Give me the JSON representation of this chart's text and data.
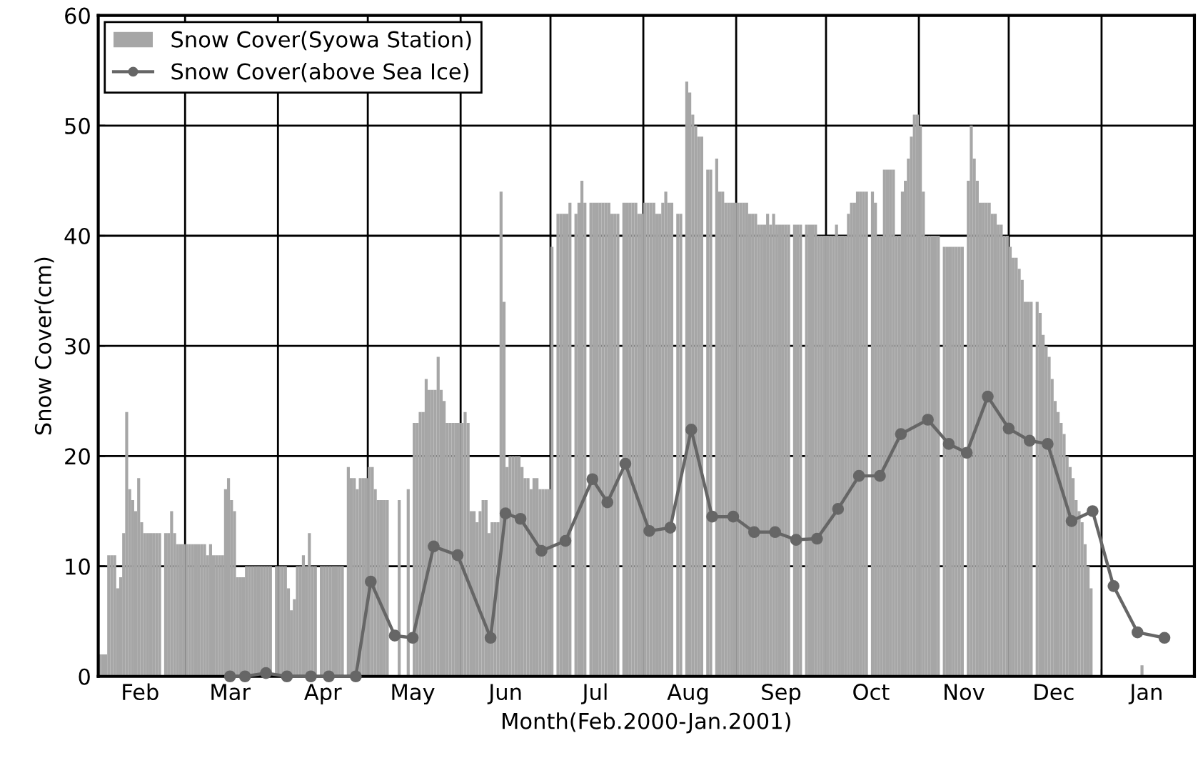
{
  "chart_data": {
    "type": "bar",
    "xlabel": "Month(Feb.2000-Jan.2001)",
    "ylabel": "Snow Cover(cm)",
    "xlim": [
      "2000-02-01",
      "2001-02-01"
    ],
    "xticks": [
      {
        "value": "2000-02-01",
        "label": null
      },
      {
        "value": "2000-02-15",
        "label": "Feb"
      },
      {
        "value": "2000-03-01",
        "label": null
      },
      {
        "value": "2000-03-16",
        "label": "Mar"
      },
      {
        "value": "2000-04-01",
        "label": null
      },
      {
        "value": "2000-04-16",
        "label": "Apr"
      },
      {
        "value": "2000-05-01",
        "label": null
      },
      {
        "value": "2000-05-16",
        "label": "May"
      },
      {
        "value": "2000-06-01",
        "label": null
      },
      {
        "value": "2000-06-16",
        "label": "Jun"
      },
      {
        "value": "2000-07-01",
        "label": null
      },
      {
        "value": "2000-07-16",
        "label": "Jul"
      },
      {
        "value": "2000-08-01",
        "label": null
      },
      {
        "value": "2000-08-16",
        "label": "Aug"
      },
      {
        "value": "2000-09-01",
        "label": null
      },
      {
        "value": "2000-09-16",
        "label": "Sep"
      },
      {
        "value": "2000-10-01",
        "label": null
      },
      {
        "value": "2000-10-16",
        "label": "Oct"
      },
      {
        "value": "2000-11-01",
        "label": null
      },
      {
        "value": "2000-11-16",
        "label": "Nov"
      },
      {
        "value": "2000-12-01",
        "label": null
      },
      {
        "value": "2000-12-16",
        "label": "Dec"
      },
      {
        "value": "2001-01-01",
        "label": null
      },
      {
        "value": "2001-01-16",
        "label": "Jan"
      },
      {
        "value": "2001-02-01",
        "label": null
      }
    ],
    "ylim": [
      0,
      60
    ],
    "yticks": [
      0,
      10,
      20,
      30,
      40,
      50,
      60
    ],
    "grid": true,
    "legend": "top left",
    "series": [
      {
        "name": "Snow Cover(Syowa Station)",
        "color": "#a6a6a6",
        "x": [
          "2000-02-01",
          "2000-02-02",
          "2000-02-03",
          "2000-02-04",
          "2000-02-05",
          "2000-02-06",
          "2000-02-07",
          "2000-02-08",
          "2000-02-09",
          "2000-02-10",
          "2000-02-11",
          "2000-02-12",
          "2000-02-13",
          "2000-02-14",
          "2000-02-15",
          "2000-02-16",
          "2000-02-17",
          "2000-02-18",
          "2000-02-19",
          "2000-02-20",
          "2000-02-21",
          "2000-02-23",
          "2000-02-24",
          "2000-02-25",
          "2000-02-26",
          "2000-02-27",
          "2000-02-28",
          "2000-02-29",
          "2000-03-01",
          "2000-03-02",
          "2000-03-03",
          "2000-03-04",
          "2000-03-05",
          "2000-03-06",
          "2000-03-07",
          "2000-03-08",
          "2000-03-09",
          "2000-03-10",
          "2000-03-11",
          "2000-03-12",
          "2000-03-13",
          "2000-03-14",
          "2000-03-15",
          "2000-03-16",
          "2000-03-17",
          "2000-03-18",
          "2000-03-19",
          "2000-03-20",
          "2000-03-21",
          "2000-03-22",
          "2000-03-23",
          "2000-03-24",
          "2000-03-25",
          "2000-03-26",
          "2000-03-27",
          "2000-03-28",
          "2000-03-29",
          "2000-03-31",
          "2000-04-01",
          "2000-04-02",
          "2000-04-03",
          "2000-04-04",
          "2000-04-05",
          "2000-04-06",
          "2000-04-07",
          "2000-04-08",
          "2000-04-09",
          "2000-04-10",
          "2000-04-11",
          "2000-04-12",
          "2000-04-13",
          "2000-04-15",
          "2000-04-16",
          "2000-04-17",
          "2000-04-18",
          "2000-04-19",
          "2000-04-20",
          "2000-04-21",
          "2000-04-22",
          "2000-04-24",
          "2000-04-25",
          "2000-04-26",
          "2000-04-27",
          "2000-04-28",
          "2000-04-29",
          "2000-04-30",
          "2000-05-01",
          "2000-05-02",
          "2000-05-03",
          "2000-05-04",
          "2000-05-05",
          "2000-05-06",
          "2000-05-07",
          "2000-05-11",
          "2000-05-14",
          "2000-05-16",
          "2000-05-17",
          "2000-05-18",
          "2000-05-19",
          "2000-05-20",
          "2000-05-21",
          "2000-05-22",
          "2000-05-23",
          "2000-05-24",
          "2000-05-25",
          "2000-05-26",
          "2000-05-27",
          "2000-05-28",
          "2000-05-29",
          "2000-05-30",
          "2000-05-31",
          "2000-06-01",
          "2000-06-02",
          "2000-06-03",
          "2000-06-04",
          "2000-06-05",
          "2000-06-06",
          "2000-06-07",
          "2000-06-08",
          "2000-06-09",
          "2000-06-10",
          "2000-06-11",
          "2000-06-12",
          "2000-06-13",
          "2000-06-14",
          "2000-06-15",
          "2000-06-16",
          "2000-06-17",
          "2000-06-18",
          "2000-06-19",
          "2000-06-20",
          "2000-06-21",
          "2000-06-22",
          "2000-06-23",
          "2000-06-24",
          "2000-06-25",
          "2000-06-26",
          "2000-06-27",
          "2000-06-28",
          "2000-06-29",
          "2000-06-30",
          "2000-07-01",
          "2000-07-03",
          "2000-07-04",
          "2000-07-05",
          "2000-07-06",
          "2000-07-07",
          "2000-07-09",
          "2000-07-10",
          "2000-07-11",
          "2000-07-12",
          "2000-07-14",
          "2000-07-15",
          "2000-07-16",
          "2000-07-17",
          "2000-07-18",
          "2000-07-19",
          "2000-07-20",
          "2000-07-21",
          "2000-07-22",
          "2000-07-23",
          "2000-07-25",
          "2000-07-26",
          "2000-07-27",
          "2000-07-28",
          "2000-07-29",
          "2000-07-30",
          "2000-07-31",
          "2000-08-01",
          "2000-08-02",
          "2000-08-03",
          "2000-08-04",
          "2000-08-05",
          "2000-08-06",
          "2000-08-07",
          "2000-08-08",
          "2000-08-09",
          "2000-08-10",
          "2000-08-12",
          "2000-08-13",
          "2000-08-15",
          "2000-08-16",
          "2000-08-17",
          "2000-08-18",
          "2000-08-19",
          "2000-08-20",
          "2000-08-22",
          "2000-08-23",
          "2000-08-25",
          "2000-08-26",
          "2000-08-27",
          "2000-08-28",
          "2000-08-29",
          "2000-08-30",
          "2000-08-31",
          "2000-09-01",
          "2000-09-02",
          "2000-09-03",
          "2000-09-04",
          "2000-09-05",
          "2000-09-06",
          "2000-09-07",
          "2000-09-08",
          "2000-09-09",
          "2000-09-10",
          "2000-09-11",
          "2000-09-12",
          "2000-09-13",
          "2000-09-14",
          "2000-09-15",
          "2000-09-16",
          "2000-09-17",
          "2000-09-18",
          "2000-09-20",
          "2000-09-21",
          "2000-09-22",
          "2000-09-24",
          "2000-09-25",
          "2000-09-26",
          "2000-09-27",
          "2000-09-28",
          "2000-09-29",
          "2000-09-30",
          "2000-10-01",
          "2000-10-02",
          "2000-10-03",
          "2000-10-04",
          "2000-10-05",
          "2000-10-06",
          "2000-10-07",
          "2000-10-08",
          "2000-10-09",
          "2000-10-10",
          "2000-10-11",
          "2000-10-12",
          "2000-10-13",
          "2000-10-14",
          "2000-10-16",
          "2000-10-17",
          "2000-10-18",
          "2000-10-19",
          "2000-10-20",
          "2000-10-21",
          "2000-10-22",
          "2000-10-23",
          "2000-10-24",
          "2000-10-25",
          "2000-10-26",
          "2000-10-27",
          "2000-10-28",
          "2000-10-29",
          "2000-10-30",
          "2000-10-31",
          "2000-11-01",
          "2000-11-02",
          "2000-11-03",
          "2000-11-04",
          "2000-11-05",
          "2000-11-06",
          "2000-11-07",
          "2000-11-09",
          "2000-11-10",
          "2000-11-11",
          "2000-11-12",
          "2000-11-13",
          "2000-11-14",
          "2000-11-15",
          "2000-11-17",
          "2000-11-18",
          "2000-11-19",
          "2000-11-20",
          "2000-11-21",
          "2000-11-22",
          "2000-11-23",
          "2000-11-24",
          "2000-11-25",
          "2000-11-26",
          "2000-11-27",
          "2000-11-28",
          "2000-11-29",
          "2000-11-30",
          "2000-12-01",
          "2000-12-02",
          "2000-12-03",
          "2000-12-04",
          "2000-12-05",
          "2000-12-06",
          "2000-12-07",
          "2000-12-08",
          "2000-12-10",
          "2000-12-11",
          "2000-12-12",
          "2000-12-13",
          "2000-12-14",
          "2000-12-15",
          "2000-12-16",
          "2000-12-17",
          "2000-12-18",
          "2000-12-19",
          "2000-12-20",
          "2000-12-21",
          "2000-12-22",
          "2000-12-23",
          "2000-12-24",
          "2000-12-25",
          "2000-12-26",
          "2000-12-27",
          "2000-12-28",
          "2001-01-14"
        ],
        "values": [
          2,
          2,
          2,
          11,
          11,
          11,
          8,
          9,
          13,
          24,
          17,
          16,
          15,
          18,
          14,
          13,
          13,
          13,
          13,
          13,
          13,
          13,
          13,
          15,
          13,
          12,
          12,
          12,
          12,
          12,
          12,
          12,
          12,
          12,
          12,
          11,
          12,
          11,
          11,
          11,
          11,
          17,
          18,
          16,
          15,
          9,
          9,
          9,
          10,
          10,
          10,
          10,
          10,
          10,
          10,
          10,
          10,
          10,
          10,
          10,
          10,
          8,
          6,
          7,
          10,
          10,
          11,
          10,
          13,
          10,
          10,
          10,
          10,
          10,
          10,
          10,
          10,
          10,
          10,
          19,
          18,
          18,
          17,
          18,
          18,
          18,
          19,
          19,
          17,
          16,
          16,
          16,
          16,
          16,
          17,
          23,
          23,
          24,
          24,
          27,
          26,
          26,
          26,
          29,
          26,
          25,
          23,
          23,
          23,
          23,
          23,
          23,
          24,
          23,
          15,
          15,
          14,
          15,
          16,
          16,
          13,
          14,
          14,
          14,
          44,
          34,
          19,
          20,
          20,
          20,
          20,
          19,
          18,
          18,
          17,
          18,
          18,
          17,
          17,
          17,
          17,
          39,
          42,
          42,
          42,
          42,
          43,
          42,
          43,
          45,
          43,
          43,
          43,
          43,
          43,
          43,
          43,
          43,
          42,
          42,
          42,
          43,
          43,
          43,
          43,
          43,
          42,
          42,
          43,
          43,
          43,
          43,
          42,
          42,
          43,
          44,
          43,
          43,
          42,
          42,
          54,
          53,
          51,
          50,
          49,
          49,
          46,
          46,
          47,
          44,
          44,
          43,
          43,
          43,
          43,
          43,
          43,
          43,
          43,
          42,
          42,
          42,
          41,
          41,
          41,
          42,
          41,
          42,
          41,
          41,
          41,
          41,
          41,
          41,
          41,
          41,
          41,
          41,
          41,
          41,
          40,
          40,
          40,
          40,
          40,
          40,
          41,
          40,
          40,
          40,
          42,
          43,
          43,
          44,
          44,
          44,
          44,
          44,
          43,
          40,
          40,
          46,
          46,
          46,
          46,
          40,
          40,
          44,
          45,
          47,
          49,
          51,
          51,
          50,
          44,
          40,
          40,
          40,
          40,
          40,
          39,
          39,
          39,
          39,
          39,
          39,
          39,
          45,
          50,
          47,
          45,
          43,
          43,
          43,
          43,
          42,
          42,
          41,
          41,
          40,
          40,
          39,
          38,
          38,
          37,
          36,
          34,
          34,
          34,
          34,
          33,
          31,
          30,
          29,
          27,
          25,
          24,
          23,
          22,
          20,
          19,
          18,
          16,
          15,
          14,
          12,
          10,
          8,
          1
        ]
      },
      {
        "type": "line",
        "name": "Snow Cover(above Sea Ice)",
        "color": "#666666",
        "marker": "circle",
        "line_style": "solid",
        "x": [
          "2000-03-16",
          "2000-03-21",
          "2000-03-28",
          "2000-04-04",
          "2000-04-12",
          "2000-04-18",
          "2000-04-27",
          "2000-05-02",
          "2000-05-10",
          "2000-05-16",
          "2000-05-23",
          "2000-05-31",
          "2000-06-11",
          "2000-06-16",
          "2000-06-21",
          "2000-06-28",
          "2000-07-06",
          "2000-07-15",
          "2000-07-20",
          "2000-07-26",
          "2000-08-03",
          "2000-08-10",
          "2000-08-17",
          "2000-08-24",
          "2000-08-31",
          "2000-09-07",
          "2000-09-14",
          "2000-09-21",
          "2000-09-28",
          "2000-10-05",
          "2000-10-12",
          "2000-10-19",
          "2000-10-26",
          "2000-11-04",
          "2000-11-11",
          "2000-11-17",
          "2000-11-24",
          "2000-12-01",
          "2000-12-08",
          "2000-12-14",
          "2000-12-22",
          "2000-12-29",
          "2001-01-05",
          "2001-01-13",
          "2001-01-22"
        ],
        "values": [
          0,
          0,
          0.3,
          0,
          0,
          0,
          0,
          8.6,
          3.7,
          3.5,
          11.8,
          11.0,
          3.5,
          14.8,
          14.3,
          11.4,
          12.3,
          17.9,
          15.8,
          19.3,
          13.2,
          13.5,
          22.4,
          14.5,
          14.5,
          13.1,
          13.1,
          12.4,
          12.5,
          15.2,
          18.2,
          18.2,
          22.0,
          23.3,
          21.1,
          20.3,
          25.4,
          22.5,
          21.4,
          21.1,
          14.1,
          15.0,
          8.2,
          4.0,
          3.5
        ]
      }
    ]
  }
}
